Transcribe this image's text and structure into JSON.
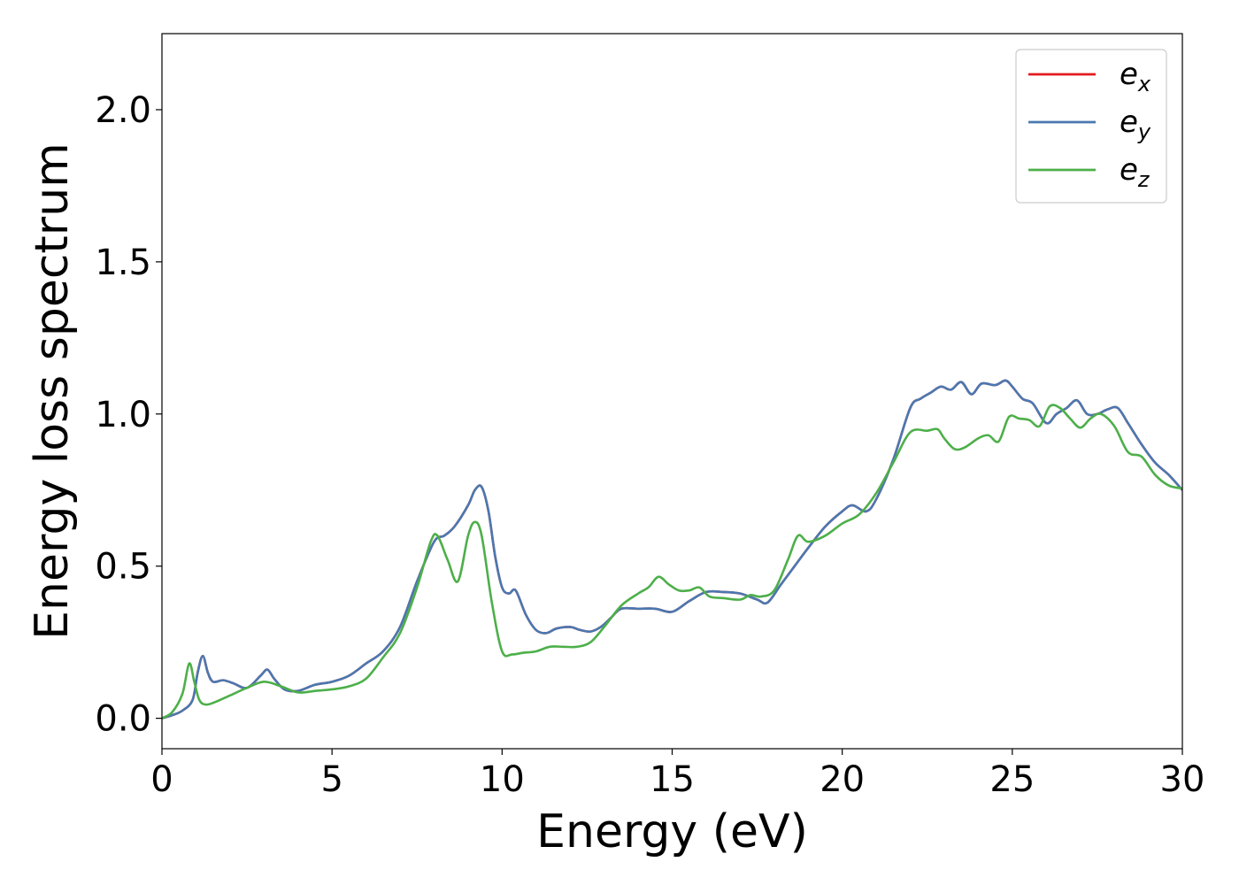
{
  "chart_data": {
    "type": "line",
    "xlabel": "Energy (eV)",
    "ylabel": "Energy loss spectrum",
    "xlim": [
      0,
      30
    ],
    "ylim": [
      -0.1,
      2.25
    ],
    "xticks": [
      0,
      5,
      10,
      15,
      20,
      25,
      30
    ],
    "xtick_labels": [
      "0",
      "5",
      "10",
      "15",
      "20",
      "25",
      "30"
    ],
    "yticks": [
      0.0,
      0.5,
      1.0,
      1.5,
      2.0
    ],
    "ytick_labels": [
      "0.0",
      "0.5",
      "1.0",
      "1.5",
      "2.0"
    ],
    "grid": false,
    "legend_position": "top-right",
    "series": [
      {
        "name": "e_x",
        "label_base": "e",
        "label_sub": "x",
        "color": "#e41a1c",
        "x": [
          0,
          0.3,
          0.6,
          0.9,
          1.05,
          1.2,
          1.35,
          1.5,
          1.8,
          2.1,
          2.5,
          2.9,
          3.1,
          3.3,
          3.6,
          4.0,
          4.5,
          5.0,
          5.5,
          6.0,
          6.5,
          7.0,
          7.5,
          8.0,
          8.3,
          8.6,
          9.0,
          9.2,
          9.4,
          9.6,
          9.8,
          10.0,
          10.2,
          10.4,
          10.7,
          11.0,
          11.3,
          11.6,
          12.0,
          12.3,
          12.6,
          12.9,
          13.2,
          13.5,
          14.0,
          14.5,
          15.0,
          15.5,
          16.0,
          16.5,
          17.0,
          17.5,
          17.8,
          18.2,
          18.6,
          19.0,
          19.5,
          20.0,
          20.3,
          20.7,
          21.0,
          21.5,
          22.0,
          22.3,
          22.6,
          22.9,
          23.2,
          23.5,
          23.8,
          24.1,
          24.5,
          24.8,
          25.0,
          25.3,
          25.6,
          26.0,
          26.3,
          26.6,
          26.9,
          27.2,
          27.5,
          27.8,
          28.1,
          28.4,
          28.8,
          29.2,
          29.6,
          30.0
        ],
        "y": [
          0.0,
          0.01,
          0.025,
          0.06,
          0.15,
          0.205,
          0.15,
          0.12,
          0.125,
          0.115,
          0.1,
          0.14,
          0.16,
          0.13,
          0.095,
          0.09,
          0.11,
          0.12,
          0.14,
          0.18,
          0.22,
          0.3,
          0.45,
          0.58,
          0.6,
          0.63,
          0.7,
          0.75,
          0.76,
          0.68,
          0.53,
          0.43,
          0.41,
          0.42,
          0.34,
          0.29,
          0.28,
          0.295,
          0.3,
          0.29,
          0.285,
          0.3,
          0.33,
          0.36,
          0.36,
          0.36,
          0.35,
          0.385,
          0.415,
          0.415,
          0.41,
          0.39,
          0.38,
          0.44,
          0.5,
          0.56,
          0.63,
          0.68,
          0.7,
          0.68,
          0.72,
          0.85,
          1.02,
          1.05,
          1.07,
          1.09,
          1.08,
          1.105,
          1.065,
          1.1,
          1.095,
          1.11,
          1.09,
          1.05,
          1.035,
          0.97,
          1.0,
          1.02,
          1.045,
          1.0,
          1.0,
          1.015,
          1.02,
          0.97,
          0.9,
          0.84,
          0.8,
          0.75
        ]
      },
      {
        "name": "e_y",
        "label_base": "e",
        "label_sub": "y",
        "color": "#4a78b0",
        "x": [
          0,
          0.3,
          0.6,
          0.9,
          1.05,
          1.2,
          1.35,
          1.5,
          1.8,
          2.1,
          2.5,
          2.9,
          3.1,
          3.3,
          3.6,
          4.0,
          4.5,
          5.0,
          5.5,
          6.0,
          6.5,
          7.0,
          7.5,
          8.0,
          8.3,
          8.6,
          9.0,
          9.2,
          9.4,
          9.6,
          9.8,
          10.0,
          10.2,
          10.4,
          10.7,
          11.0,
          11.3,
          11.6,
          12.0,
          12.3,
          12.6,
          12.9,
          13.2,
          13.5,
          14.0,
          14.5,
          15.0,
          15.5,
          16.0,
          16.5,
          17.0,
          17.5,
          17.8,
          18.2,
          18.6,
          19.0,
          19.5,
          20.0,
          20.3,
          20.7,
          21.0,
          21.5,
          22.0,
          22.3,
          22.6,
          22.9,
          23.2,
          23.5,
          23.8,
          24.1,
          24.5,
          24.8,
          25.0,
          25.3,
          25.6,
          26.0,
          26.3,
          26.6,
          26.9,
          27.2,
          27.5,
          27.8,
          28.1,
          28.4,
          28.8,
          29.2,
          29.6,
          30.0
        ],
        "y": [
          0.0,
          0.01,
          0.025,
          0.06,
          0.15,
          0.205,
          0.15,
          0.12,
          0.125,
          0.115,
          0.1,
          0.14,
          0.16,
          0.13,
          0.095,
          0.09,
          0.11,
          0.12,
          0.14,
          0.18,
          0.22,
          0.3,
          0.45,
          0.58,
          0.6,
          0.63,
          0.7,
          0.75,
          0.76,
          0.68,
          0.53,
          0.43,
          0.41,
          0.42,
          0.34,
          0.29,
          0.28,
          0.295,
          0.3,
          0.29,
          0.285,
          0.3,
          0.33,
          0.36,
          0.36,
          0.36,
          0.35,
          0.385,
          0.415,
          0.415,
          0.41,
          0.39,
          0.38,
          0.44,
          0.5,
          0.56,
          0.63,
          0.68,
          0.7,
          0.68,
          0.72,
          0.85,
          1.02,
          1.05,
          1.07,
          1.09,
          1.08,
          1.105,
          1.065,
          1.1,
          1.095,
          1.11,
          1.09,
          1.05,
          1.035,
          0.97,
          1.0,
          1.02,
          1.045,
          1.0,
          1.0,
          1.015,
          1.02,
          0.97,
          0.9,
          0.84,
          0.8,
          0.75
        ]
      },
      {
        "name": "e_z",
        "label_base": "e",
        "label_sub": "z",
        "color": "#4daf4a",
        "x": [
          0,
          0.3,
          0.6,
          0.8,
          0.95,
          1.1,
          1.3,
          1.6,
          2.0,
          2.5,
          3.0,
          3.5,
          4.0,
          4.5,
          5.0,
          5.5,
          6.0,
          6.5,
          7.0,
          7.5,
          7.9,
          8.1,
          8.4,
          8.7,
          9.0,
          9.2,
          9.4,
          9.7,
          10.0,
          10.3,
          10.6,
          11.0,
          11.4,
          11.8,
          12.2,
          12.6,
          13.0,
          13.5,
          14.0,
          14.3,
          14.6,
          14.9,
          15.2,
          15.5,
          15.8,
          16.1,
          16.5,
          17.0,
          17.3,
          17.6,
          18.0,
          18.4,
          18.7,
          19.0,
          19.5,
          20.0,
          20.5,
          21.0,
          21.5,
          22.0,
          22.5,
          22.8,
          23.0,
          23.3,
          23.6,
          24.0,
          24.3,
          24.6,
          24.9,
          25.2,
          25.5,
          25.8,
          26.1,
          26.4,
          26.7,
          27.0,
          27.3,
          27.6,
          28.0,
          28.4,
          28.8,
          29.2,
          29.6,
          30.0
        ],
        "y": [
          0.0,
          0.02,
          0.08,
          0.18,
          0.12,
          0.06,
          0.045,
          0.055,
          0.075,
          0.1,
          0.12,
          0.105,
          0.085,
          0.09,
          0.095,
          0.105,
          0.13,
          0.2,
          0.28,
          0.43,
          0.58,
          0.6,
          0.52,
          0.45,
          0.6,
          0.645,
          0.6,
          0.38,
          0.22,
          0.21,
          0.215,
          0.22,
          0.235,
          0.235,
          0.235,
          0.25,
          0.3,
          0.37,
          0.41,
          0.43,
          0.465,
          0.44,
          0.42,
          0.42,
          0.43,
          0.4,
          0.395,
          0.39,
          0.405,
          0.4,
          0.42,
          0.52,
          0.6,
          0.58,
          0.6,
          0.64,
          0.67,
          0.74,
          0.84,
          0.94,
          0.945,
          0.95,
          0.92,
          0.885,
          0.89,
          0.92,
          0.93,
          0.91,
          0.99,
          0.985,
          0.98,
          0.96,
          1.025,
          1.02,
          0.985,
          0.955,
          0.985,
          1.0,
          0.96,
          0.875,
          0.86,
          0.8,
          0.765,
          0.755
        ]
      }
    ]
  }
}
